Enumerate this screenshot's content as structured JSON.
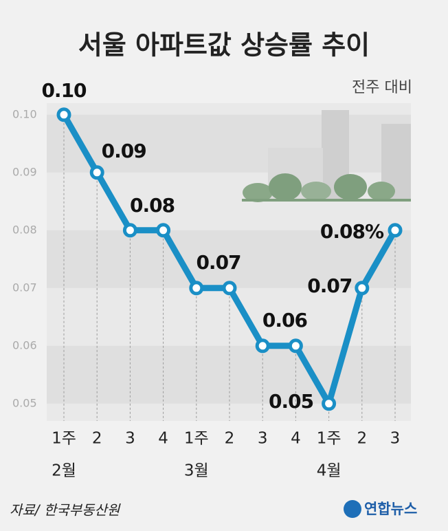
{
  "chart_data": {
    "type": "line",
    "title": "서울 아파트값 상승률 추이",
    "subtitle": "전주 대비",
    "source": "자료/ 한국부동산원",
    "logo": "연합뉴스",
    "categories": [
      "1주",
      "2",
      "3",
      "4",
      "1주",
      "2",
      "3",
      "4",
      "1주",
      "2",
      "3"
    ],
    "month_groups": [
      "2월",
      "3월",
      "4월"
    ],
    "series": [
      {
        "color": "#1a8fc6",
        "values": [
          0.1,
          0.09,
          0.08,
          0.08,
          0.07,
          0.07,
          0.06,
          0.06,
          0.05,
          0.07,
          0.08
        ],
        "value_labels": [
          "0.10",
          "0.09",
          null,
          "0.08",
          null,
          "0.07",
          null,
          "0.06",
          "0.05",
          "0.07",
          "0.08%"
        ]
      }
    ],
    "ylim": [
      0.047,
      0.102
    ],
    "yticks": [
      {
        "value": 0.1,
        "label": "0.10"
      },
      0.09,
      0.08,
      0.07,
      0.06,
      0.05
    ],
    "grid": "bands"
  }
}
